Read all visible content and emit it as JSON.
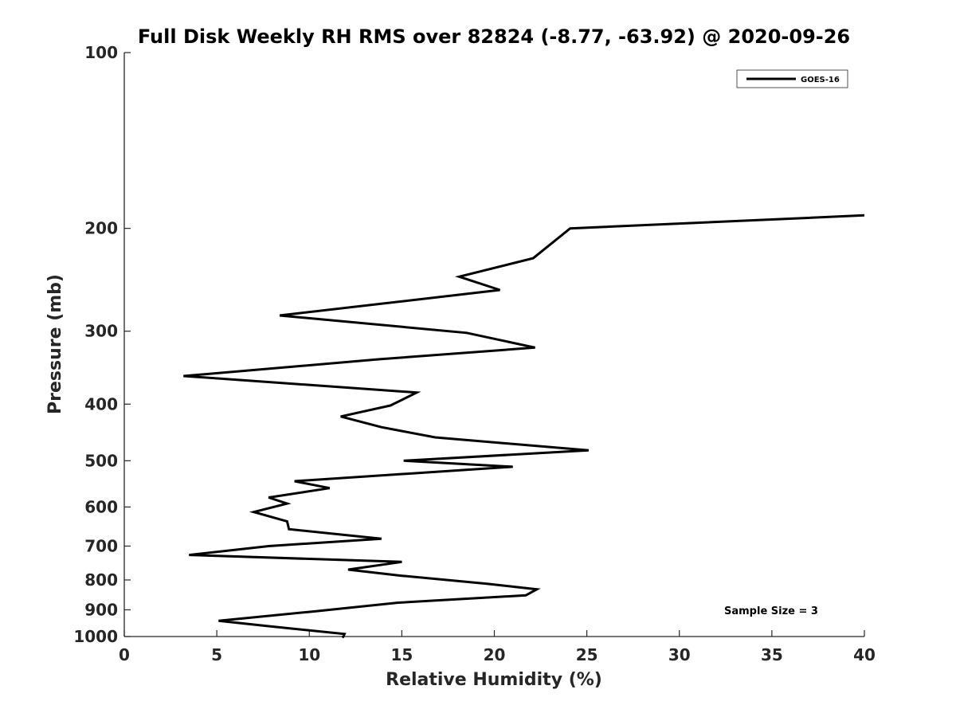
{
  "chart_data": {
    "type": "line",
    "title": "Full Disk Weekly RH RMS over 82824 (-8.77, -63.92) @ 2020-09-26",
    "xlabel": "Relative Humidity (%)",
    "ylabel": "Pressure (mb)",
    "xlim": [
      0,
      40
    ],
    "ylim": [
      100,
      1000
    ],
    "y_scale": "log",
    "y_reversed": true,
    "xticks": [
      "0",
      "5",
      "10",
      "15",
      "20",
      "25",
      "30",
      "35",
      "40"
    ],
    "yticks": [
      "100",
      "200",
      "300",
      "400",
      "500",
      "600",
      "700",
      "800",
      "900",
      "1000"
    ],
    "grid": false,
    "legend": {
      "position": "top-right",
      "entries": [
        "GOES-16"
      ]
    },
    "annotations": [
      "Sample Size = 3"
    ],
    "series": [
      {
        "name": "GOES-16",
        "color": "#000000",
        "x": [
          40.0,
          24.1,
          22.1,
          18.1,
          20.3,
          8.4,
          18.5,
          22.2,
          13.8,
          3.2,
          15.8,
          14.4,
          11.7,
          13.9,
          16.8,
          25.1,
          15.1,
          21.0,
          9.2,
          11.1,
          7.8,
          8.8,
          7.0,
          8.8,
          8.9,
          13.9,
          7.8,
          3.5,
          15.0,
          12.1,
          15.0,
          19.6,
          22.3,
          21.7,
          14.8,
          10.2,
          5.1,
          7.8,
          11.9,
          11.8
        ],
        "y": [
          190,
          200,
          225,
          242,
          255,
          282,
          302,
          320,
          335,
          358,
          382,
          402,
          420,
          438,
          456,
          480,
          500,
          512,
          542,
          557,
          578,
          592,
          612,
          635,
          655,
          680,
          700,
          725,
          745,
          768,
          787,
          812,
          830,
          850,
          875,
          906,
          940,
          960,
          990,
          1005
        ]
      }
    ]
  }
}
